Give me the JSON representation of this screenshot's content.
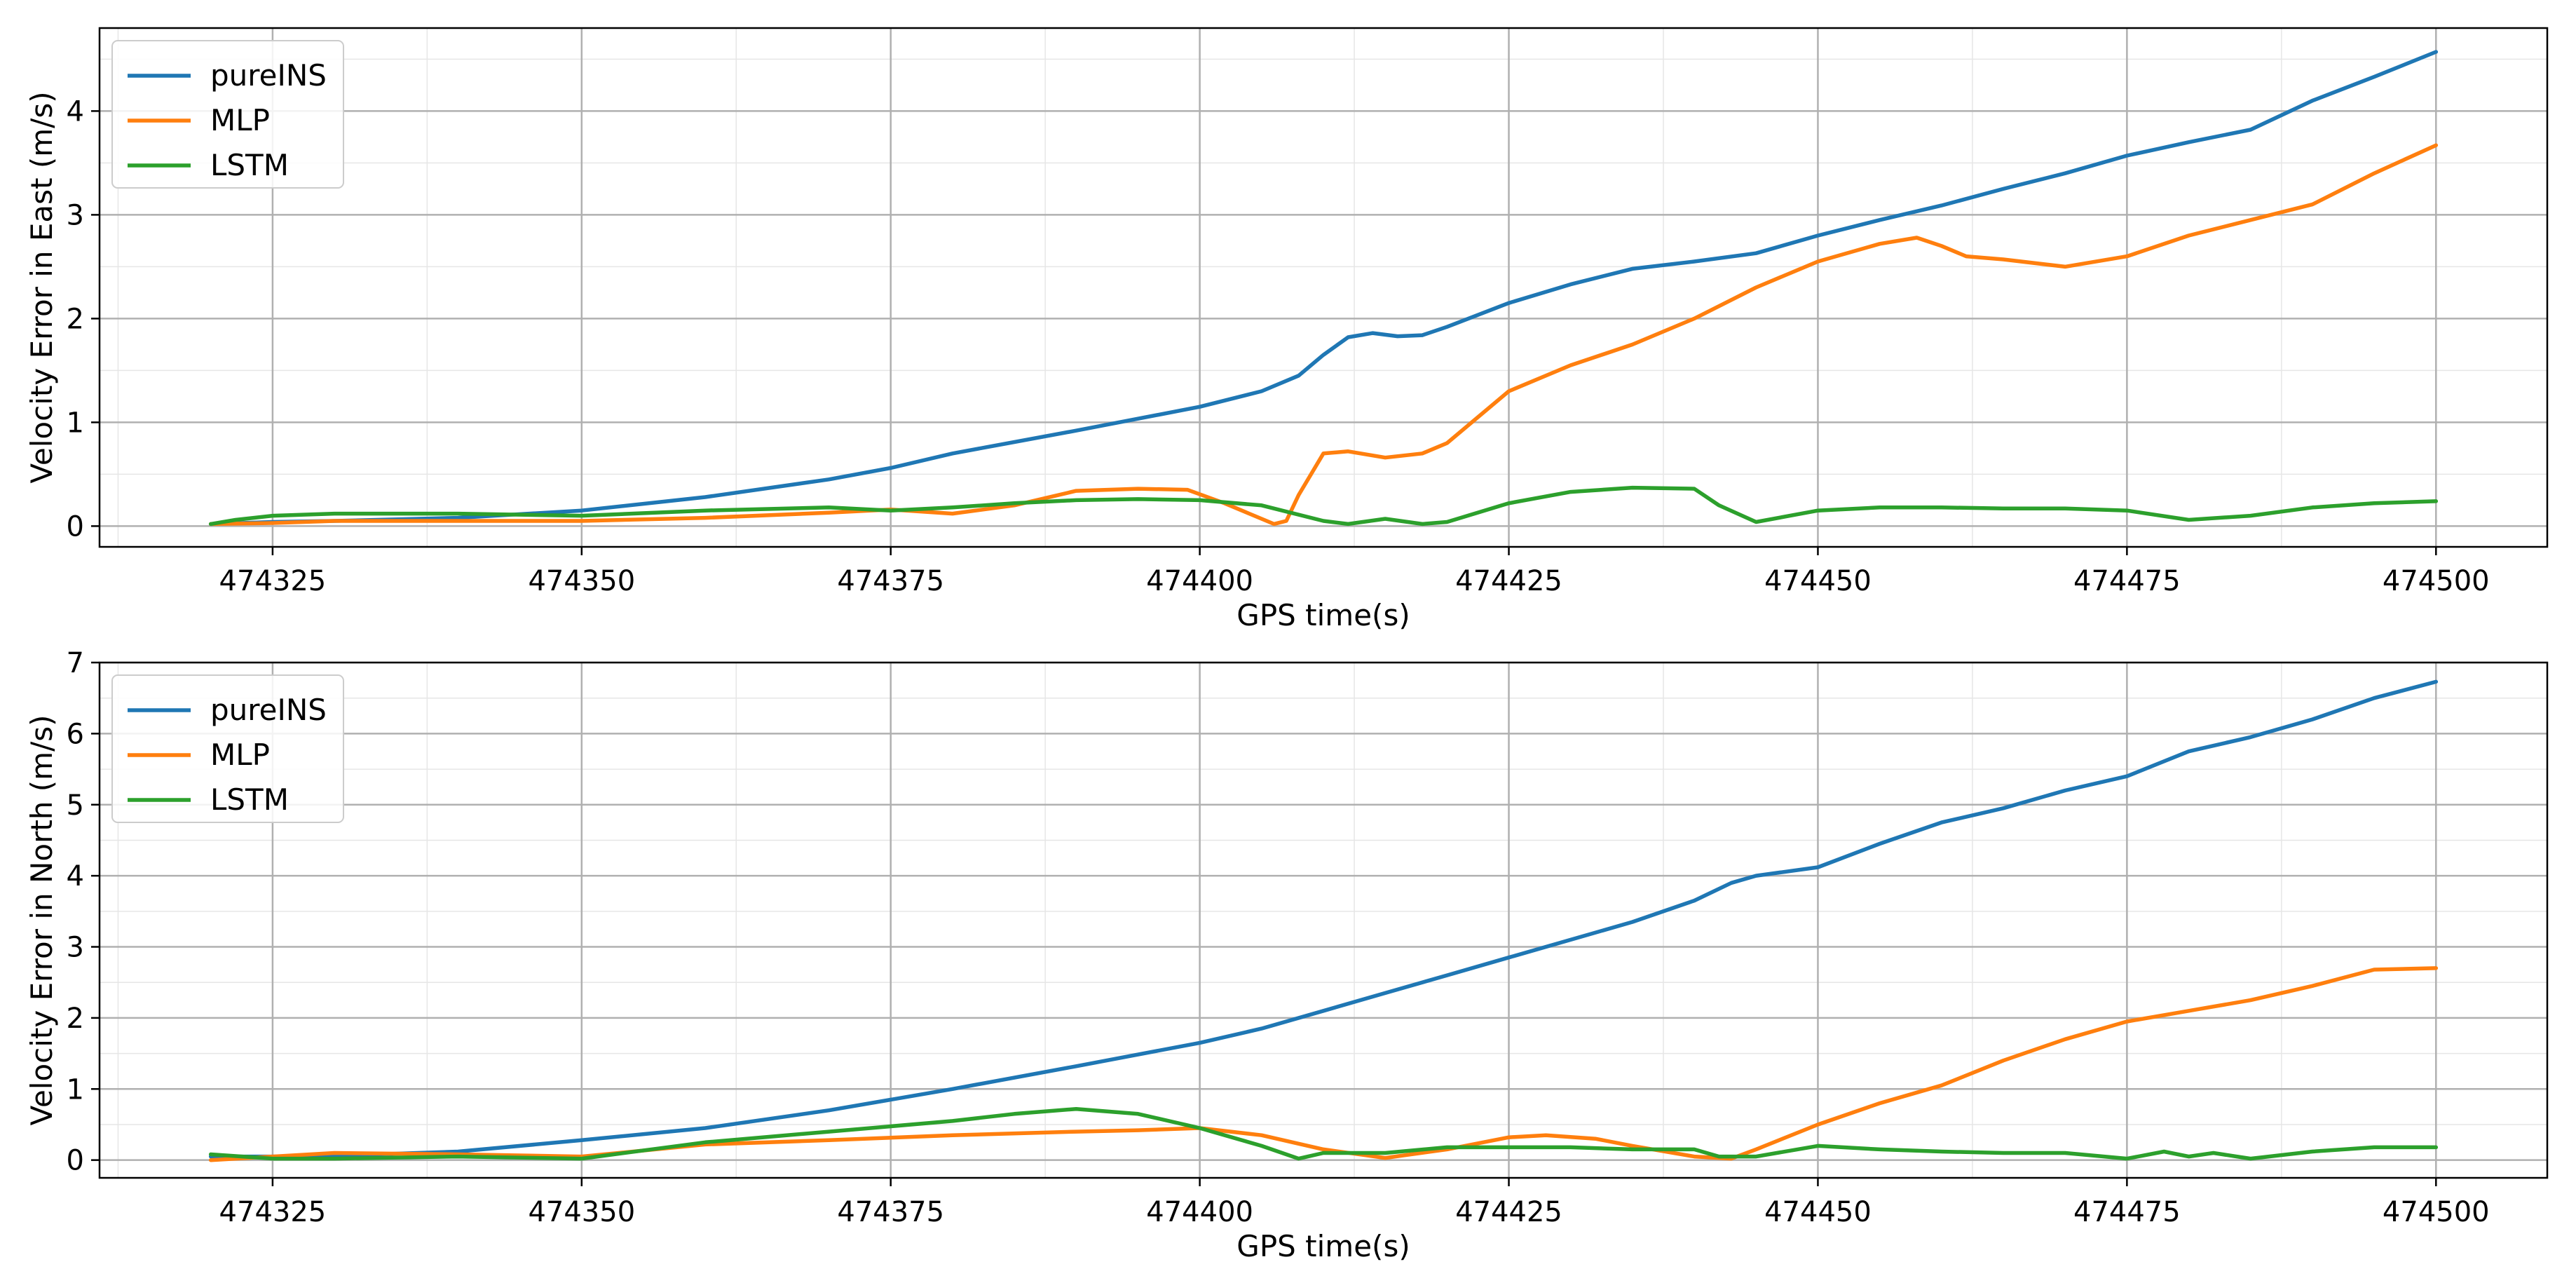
{
  "chart_data": [
    {
      "type": "line",
      "xlabel": "GPS time(s)",
      "ylabel": "Velocity Error in East (m/s)",
      "xlim": [
        474311,
        474509
      ],
      "ylim": [
        -0.2,
        4.8
      ],
      "xticks": [
        474325,
        474350,
        474375,
        474400,
        474425,
        474450,
        474475,
        474500
      ],
      "yticks": [
        0,
        1,
        2,
        3,
        4
      ],
      "grid": true,
      "legend": "top-left",
      "series": [
        {
          "name": "pureINS",
          "color": "#1f77b4",
          "x": [
            474320,
            474325,
            474330,
            474340,
            474350,
            474360,
            474370,
            474375,
            474380,
            474390,
            474400,
            474405,
            474408,
            474410,
            474412,
            474414,
            474416,
            474418,
            474420,
            474425,
            474430,
            474435,
            474440,
            474445,
            474450,
            474455,
            474460,
            474465,
            474470,
            474475,
            474480,
            474485,
            474490,
            474495,
            474500
          ],
          "y": [
            0.02,
            0.04,
            0.05,
            0.08,
            0.15,
            0.28,
            0.45,
            0.56,
            0.7,
            0.92,
            1.15,
            1.3,
            1.45,
            1.65,
            1.82,
            1.86,
            1.83,
            1.84,
            1.92,
            2.15,
            2.33,
            2.48,
            2.55,
            2.63,
            2.8,
            2.95,
            3.09,
            3.25,
            3.4,
            3.57,
            3.7,
            3.82,
            4.1,
            4.33,
            4.57
          ]
        },
        {
          "name": "MLP",
          "color": "#ff7f0e",
          "x": [
            474320,
            474325,
            474330,
            474340,
            474350,
            474360,
            474370,
            474375,
            474380,
            474385,
            474390,
            474395,
            474399,
            474402,
            474404,
            474406,
            474407,
            474408,
            474409,
            474410,
            474412,
            474415,
            474418,
            474420,
            474425,
            474430,
            474435,
            474440,
            474445,
            474450,
            474455,
            474458,
            474460,
            474462,
            474465,
            474470,
            474475,
            474480,
            474485,
            474490,
            474495,
            474500
          ],
          "y": [
            0.02,
            0.03,
            0.05,
            0.05,
            0.05,
            0.08,
            0.13,
            0.16,
            0.12,
            0.2,
            0.34,
            0.36,
            0.35,
            0.22,
            0.12,
            0.02,
            0.05,
            0.3,
            0.5,
            0.7,
            0.72,
            0.66,
            0.7,
            0.8,
            1.3,
            1.55,
            1.75,
            2.0,
            2.3,
            2.55,
            2.72,
            2.78,
            2.7,
            2.6,
            2.57,
            2.5,
            2.6,
            2.8,
            2.95,
            3.1,
            3.4,
            3.67
          ]
        },
        {
          "name": "LSTM",
          "color": "#2ca02c",
          "x": [
            474320,
            474322,
            474325,
            474330,
            474340,
            474350,
            474360,
            474370,
            474375,
            474380,
            474385,
            474390,
            474395,
            474400,
            474405,
            474410,
            474412,
            474415,
            474418,
            474420,
            474425,
            474430,
            474435,
            474440,
            474442,
            474445,
            474450,
            474455,
            474460,
            474465,
            474470,
            474475,
            474480,
            474485,
            474490,
            474495,
            474500
          ],
          "y": [
            0.02,
            0.06,
            0.1,
            0.12,
            0.12,
            0.1,
            0.15,
            0.18,
            0.15,
            0.18,
            0.22,
            0.25,
            0.26,
            0.25,
            0.2,
            0.05,
            0.02,
            0.07,
            0.02,
            0.04,
            0.22,
            0.33,
            0.37,
            0.36,
            0.2,
            0.04,
            0.15,
            0.18,
            0.18,
            0.17,
            0.17,
            0.15,
            0.06,
            0.1,
            0.18,
            0.22,
            0.24
          ]
        }
      ]
    },
    {
      "type": "line",
      "xlabel": "GPS time(s)",
      "ylabel": "Velocity Error in North (m/s)",
      "xlim": [
        474311,
        474509
      ],
      "ylim": [
        -0.25,
        7.0
      ],
      "xticks": [
        474325,
        474350,
        474375,
        474400,
        474425,
        474450,
        474475,
        474500
      ],
      "yticks": [
        0,
        1,
        2,
        3,
        4,
        5,
        6,
        7
      ],
      "grid": true,
      "legend": "top-left",
      "series": [
        {
          "name": "pureINS",
          "color": "#1f77b4",
          "x": [
            474320,
            474325,
            474330,
            474340,
            474350,
            474360,
            474370,
            474380,
            474390,
            474400,
            474405,
            474410,
            474415,
            474420,
            474425,
            474430,
            474435,
            474440,
            474443,
            474445,
            474450,
            474455,
            474460,
            474465,
            474470,
            474475,
            474480,
            474485,
            474490,
            474495,
            474500
          ],
          "y": [
            0.05,
            0.05,
            0.06,
            0.12,
            0.28,
            0.45,
            0.7,
            1.0,
            1.32,
            1.65,
            1.85,
            2.1,
            2.35,
            2.6,
            2.85,
            3.1,
            3.35,
            3.65,
            3.9,
            4.0,
            4.12,
            4.45,
            4.75,
            4.95,
            5.2,
            5.4,
            5.75,
            5.95,
            6.2,
            6.5,
            6.73
          ]
        },
        {
          "name": "MLP",
          "color": "#ff7f0e",
          "x": [
            474320,
            474325,
            474330,
            474340,
            474350,
            474360,
            474370,
            474380,
            474390,
            474395,
            474400,
            474405,
            474410,
            474415,
            474420,
            474425,
            474428,
            474432,
            474435,
            474440,
            474443,
            474445,
            474450,
            474455,
            474460,
            474465,
            474470,
            474475,
            474480,
            474485,
            474490,
            474495,
            474500
          ],
          "y": [
            0.0,
            0.05,
            0.1,
            0.08,
            0.05,
            0.22,
            0.28,
            0.35,
            0.4,
            0.42,
            0.45,
            0.35,
            0.15,
            0.03,
            0.15,
            0.32,
            0.35,
            0.3,
            0.2,
            0.05,
            0.02,
            0.15,
            0.5,
            0.8,
            1.05,
            1.4,
            1.7,
            1.95,
            2.1,
            2.25,
            2.45,
            2.68,
            2.7
          ]
        },
        {
          "name": "LSTM",
          "color": "#2ca02c",
          "x": [
            474320,
            474325,
            474330,
            474340,
            474350,
            474360,
            474370,
            474380,
            474385,
            474390,
            474395,
            474400,
            474405,
            474408,
            474410,
            474415,
            474420,
            474425,
            474430,
            474435,
            474440,
            474442,
            474445,
            474450,
            474455,
            474460,
            474465,
            474470,
            474475,
            474478,
            474480,
            474482,
            474485,
            474490,
            474495,
            474500
          ],
          "y": [
            0.08,
            0.02,
            0.02,
            0.05,
            0.02,
            0.25,
            0.4,
            0.55,
            0.65,
            0.72,
            0.65,
            0.45,
            0.2,
            0.02,
            0.1,
            0.1,
            0.18,
            0.18,
            0.18,
            0.15,
            0.15,
            0.05,
            0.05,
            0.2,
            0.15,
            0.12,
            0.1,
            0.1,
            0.02,
            0.12,
            0.05,
            0.1,
            0.02,
            0.12,
            0.18,
            0.18
          ]
        }
      ]
    }
  ]
}
